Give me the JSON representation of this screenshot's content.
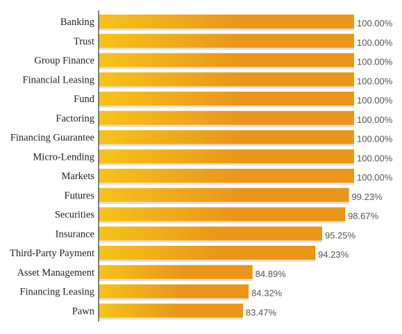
{
  "chart_data": {
    "type": "bar",
    "orientation": "horizontal",
    "categories": [
      "Banking",
      "Trust",
      "Group Finance",
      "Financial Leasing",
      "Fund",
      "Factoring",
      "Financing Guarantee",
      "Micro-Lending",
      "Markets",
      "Futures",
      "Securities",
      "Insurance",
      "Third-Party Payment",
      "Asset Management",
      "Financing Leasing",
      "Pawn"
    ],
    "values": [
      100.0,
      100.0,
      100.0,
      100.0,
      100.0,
      100.0,
      100.0,
      100.0,
      100.0,
      99.23,
      98.67,
      95.25,
      94.23,
      84.89,
      84.32,
      83.47
    ],
    "value_labels": [
      "100.00%",
      "100.00%",
      "100.00%",
      "100.00%",
      "100.00%",
      "100.00%",
      "100.00%",
      "100.00%",
      "100.00%",
      "99.23%",
      "98.67%",
      "95.25%",
      "94.23%",
      "84.89%",
      "84.32%",
      "83.47%"
    ],
    "xlim": [
      62,
      100
    ],
    "grid": false,
    "legend": "none",
    "colors": {
      "bar_start": "#f7c219",
      "bar_end": "#e9961a",
      "shadow": "#c9c9c9",
      "axis": "#333333",
      "label": "#1f1f1f",
      "value": "#555555"
    }
  }
}
